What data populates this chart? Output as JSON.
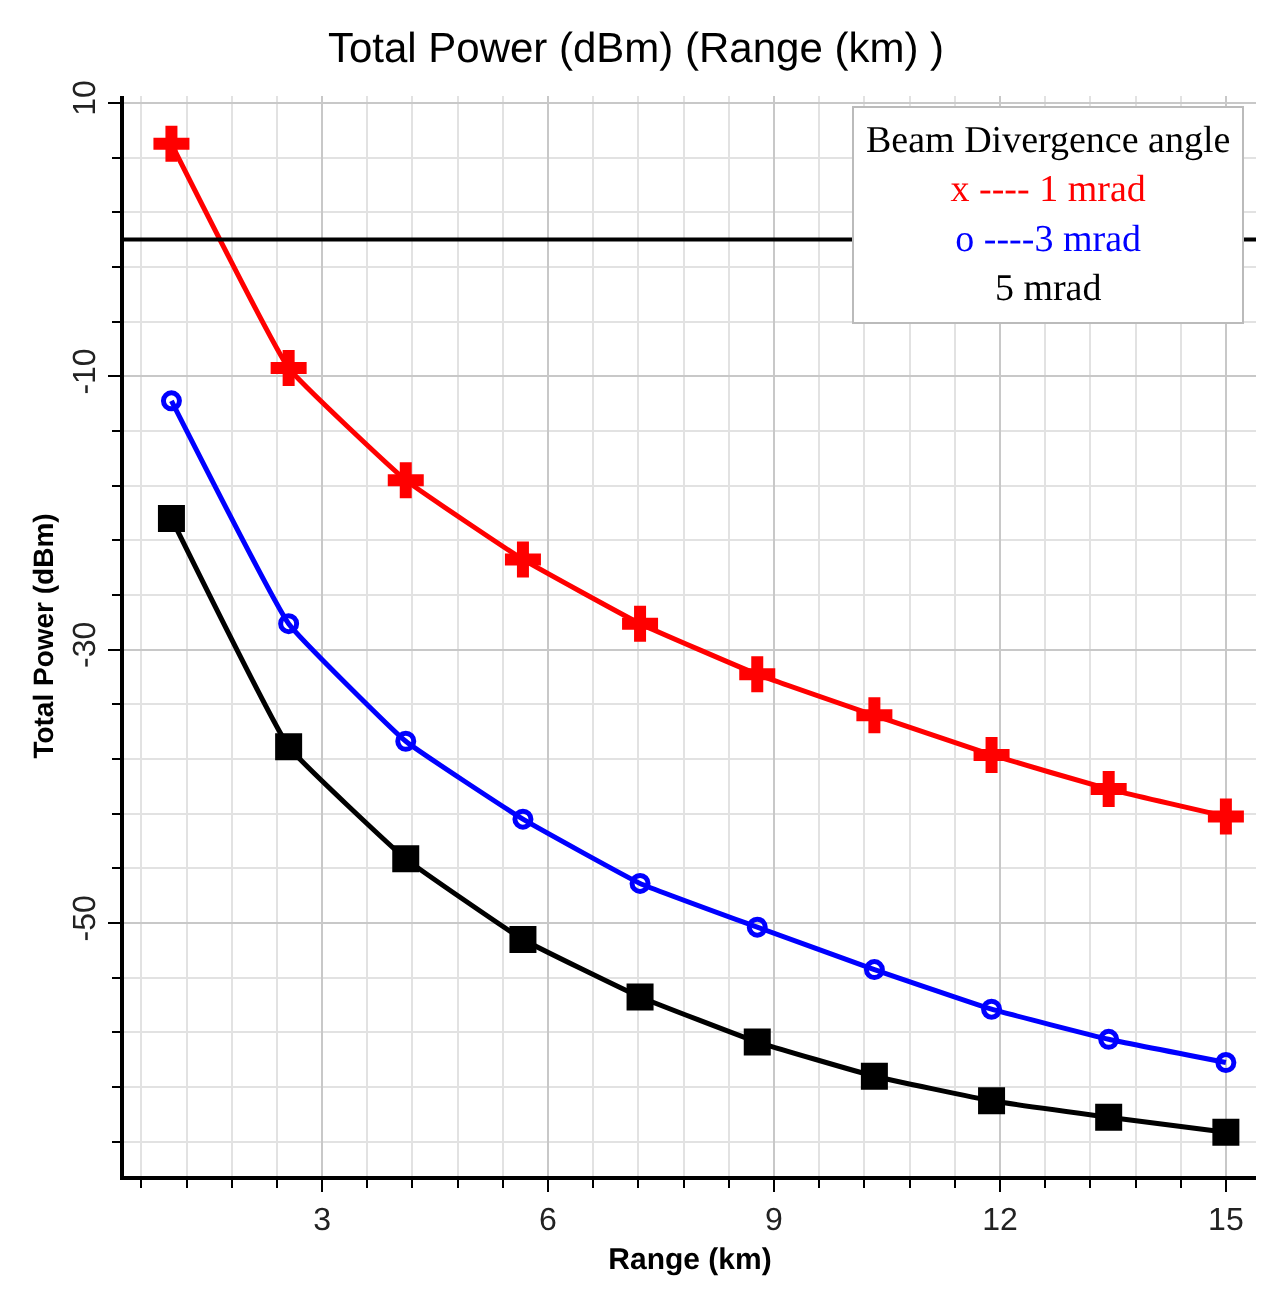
{
  "chart_data": {
    "type": "line",
    "title": "Total Power (dBm) (Range (km) )",
    "xlabel": "Range (km)",
    "ylabel": "Total Power (dBm)",
    "legend_title": "Beam Divergence angle",
    "x": [
      1,
      2.556,
      4.111,
      5.667,
      7.222,
      8.778,
      10.333,
      11.889,
      13.444,
      15
    ],
    "series": [
      {
        "name": "x ---- 1 mrad",
        "color": "#ff0000",
        "marker": "cross",
        "values": [
          7.0,
          -9.4,
          -17.6,
          -23.4,
          -28.1,
          -31.8,
          -34.8,
          -37.7,
          -40.2,
          -42.2
        ]
      },
      {
        "name": "o ----3 mrad",
        "color": "#0000ff",
        "marker": "circle",
        "values": [
          -11.8,
          -28.1,
          -36.7,
          -42.4,
          -47.1,
          -50.3,
          -53.4,
          -56.3,
          -58.5,
          -60.2
        ]
      },
      {
        "name": "5 mrad",
        "color": "#000000",
        "marker": "square",
        "values": [
          -20.4,
          -37.1,
          -45.3,
          -51.2,
          -55.4,
          -58.7,
          -61.2,
          -63.0,
          -64.2,
          -65.3
        ]
      }
    ],
    "xlim": [
      0.37,
      15.4
    ],
    "xticks": [
      3,
      6,
      9,
      12,
      15
    ],
    "ylim": [
      -68.5,
      10.5
    ],
    "yticks": [
      10,
      -10,
      -30,
      -50
    ],
    "ref_lines": [
      {
        "axis": "y",
        "value": 0,
        "color": "#000000"
      }
    ],
    "grid": true,
    "legend": "top right",
    "line_style": "solid"
  }
}
